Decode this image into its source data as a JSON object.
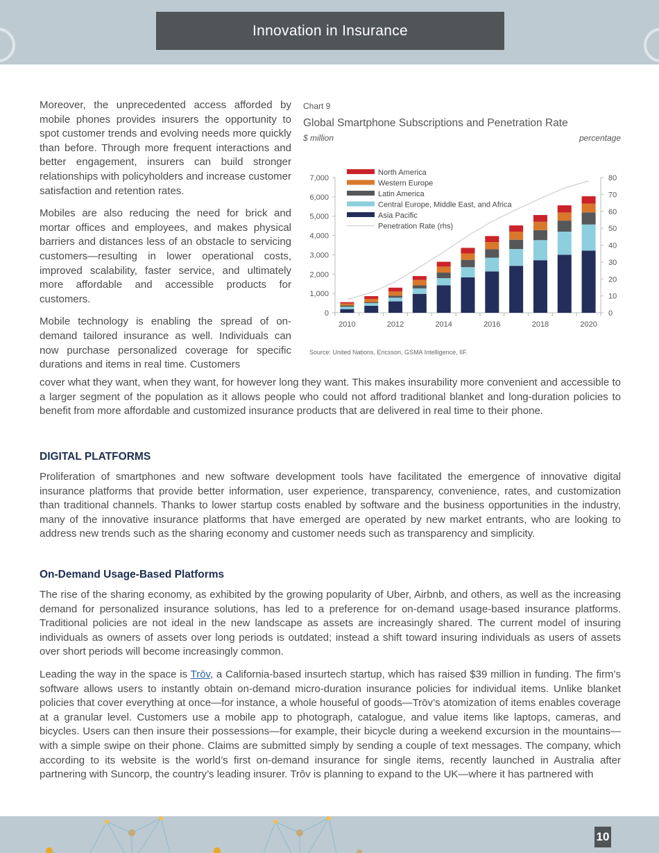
{
  "header": {
    "title": "Innovation in Insurance"
  },
  "left_column": {
    "paragraphs": [
      "Moreover, the unprecedented access afforded by mobile phones provides insurers the opportunity to spot customer trends and evolving needs more quickly than before. Through more frequent interactions and better engagement, insurers can build stronger relationships with policyholders and increase customer satisfaction and retention rates.",
      "Mobiles are also reducing the need for brick and mortar offices and employees, and makes physical barriers and distances less of an obstacle to servicing customers—resulting in lower operational costs, improved scalability, faster service, and ultimately more affordable and accessible products for customers.",
      "Mobile technology is enabling the spread of on-demand tailored insurance as well. Individuals can now purchase personalized coverage for specific durations and items in real time. Customers"
    ]
  },
  "continuation": "cover what they want, when they want, for however long they want. This makes insurability more convenient and accessible to a larger segment of the population as it allows people who could not afford traditional blanket and long-duration policies to benefit from more affordable and customized insurance products that are delivered in real time to their phone.",
  "section1": {
    "heading": "DIGITAL PLATFORMS",
    "paragraph": "Proliferation of smartphones and new software development tools have facilitated the emergence of innovative digital insurance platforms that provide better information, user experience, transparency, convenience, rates, and customization than traditional channels. Thanks to lower startup costs enabled by software and the business opportunities in the industry, many of the innovative insurance platforms that have emerged are operated by new market entrants, who are looking to address new trends such as the sharing economy and customer needs such as transparency and simplicity."
  },
  "section2": {
    "heading": "On-Demand Usage-Based Platforms",
    "paragraph1": "The rise of the sharing economy, as exhibited by the growing popularity of Uber, Airbnb, and others, as well as the increasing demand for personalized insurance solutions, has led to a preference for on-demand usage-based insurance platforms. Traditional policies are not ideal in the new landscape as assets are increasingly shared. The current model of insuring individuals as owners of assets over long periods is outdated; instead a shift toward insuring individuals as users of assets over short periods will become increasingly common.",
    "paragraph2_before": "Leading the way in the space is ",
    "paragraph2_link": "Trōv",
    "paragraph2_after": ", a California-based insurtech startup, which has raised $39 million in funding. The firm’s software allows users to instantly obtain on-demand micro-duration insurance policies for individual items. Unlike blanket policies that cover everything at once—for instance, a whole houseful of goods—Trōv’s atomization of items enables coverage at a granular level. Customers use a mobile app to photograph, catalogue, and value items like laptops, cameras, and bicycles. Users can then insure their possessions—for example, their bicycle during a weekend excursion in the mountains—with a simple swipe on their phone. Claims are submitted simply by sending a couple of text messages. The company, which according to its website is the world’s first on-demand insurance for single items, recently launched in Australia after partnering with Suncorp, the country’s leading insurer. Trōv is planning to expand to the UK—where it has partnered with"
  },
  "chart_data": {
    "type": "bar",
    "stacked": true,
    "label": "Chart 9",
    "title": "Global Smartphone Subscriptions and Penetration Rate",
    "ylabel": "$ million",
    "y2label": "percentage",
    "source": "Source: United Nations, Ericsson, GSMA Intelligence, IIF.",
    "categories": [
      2010,
      2011,
      2012,
      2013,
      2014,
      2015,
      2016,
      2017,
      2018,
      2019,
      2020
    ],
    "x_tick_labels": [
      "2010",
      "2012",
      "2014",
      "2016",
      "2018",
      "2020"
    ],
    "ylim": [
      0,
      7000
    ],
    "y_ticks": [
      "0",
      "1,000",
      "2,000",
      "3,000",
      "4,000",
      "5,000",
      "6,000",
      "7,000"
    ],
    "y2lim": [
      0,
      80
    ],
    "y2_ticks": [
      "0",
      "10",
      "20",
      "30",
      "40",
      "50",
      "60",
      "70",
      "80"
    ],
    "legend_position": "top-left",
    "series": [
      {
        "name": "Asia Pacific",
        "color": "#232e5a",
        "values": [
          190,
          360,
          590,
          980,
          1420,
          1830,
          2140,
          2430,
          2720,
          3000,
          3220
        ]
      },
      {
        "name": "Central Europe, Middle East, and Africa",
        "color": "#8dcfdf",
        "values": [
          120,
          140,
          190,
          280,
          370,
          530,
          710,
          870,
          1040,
          1200,
          1350
        ]
      },
      {
        "name": "Latin America",
        "color": "#555759",
        "values": [
          70,
          50,
          105,
          160,
          290,
          380,
          440,
          480,
          520,
          570,
          620
        ]
      },
      {
        "name": "Western Europe",
        "color": "#d9782b",
        "values": [
          100,
          170,
          215,
          280,
          310,
          330,
          370,
          420,
          430,
          420,
          460
        ]
      },
      {
        "name": "North America",
        "color": "#cc2229",
        "values": [
          70,
          140,
          200,
          200,
          250,
          290,
          310,
          320,
          350,
          370,
          380
        ]
      }
    ],
    "line": {
      "name": "Penetration Rate (rhs)",
      "color": "#cfcfcf",
      "axis": "right",
      "values": [
        7.8,
        12,
        18.5,
        27,
        36,
        45.6,
        54,
        61,
        67.6,
        73.8,
        78
      ]
    }
  },
  "footer": {
    "page_number": "10"
  }
}
